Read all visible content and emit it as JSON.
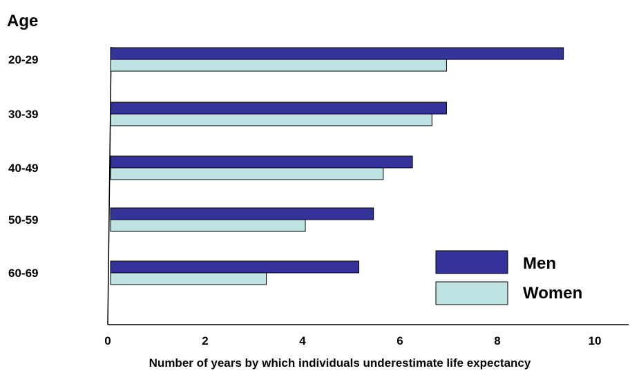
{
  "chart_data": {
    "type": "bar",
    "orientation": "horizontal",
    "ylabel": "Age",
    "xlabel": "Number of years by which individuals underestimate life expectancy",
    "categories": [
      "20-29",
      "30-39",
      "40-49",
      "50-59",
      "60-69"
    ],
    "x_ticks": [
      0,
      2,
      4,
      6,
      8,
      10
    ],
    "xlim": [
      0,
      10
    ],
    "series": [
      {
        "name": "Men",
        "color": "#333399",
        "values": [
          9.3,
          6.9,
          6.2,
          5.4,
          5.1
        ]
      },
      {
        "name": "Women",
        "color": "#bfe2e2",
        "values": [
          6.9,
          6.6,
          5.6,
          4.0,
          3.2
        ]
      }
    ],
    "legend": {
      "placement": "bottom-right"
    },
    "grid": false
  }
}
